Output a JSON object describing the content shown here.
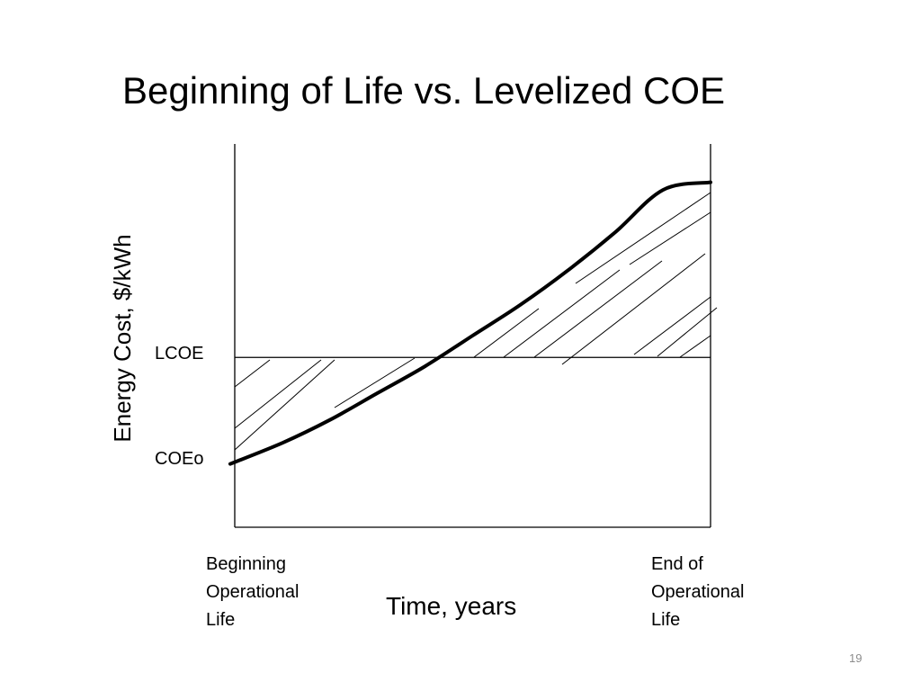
{
  "slide": {
    "title": "Beginning of Life vs. Levelized COE",
    "page_number": "19"
  },
  "chart_data": {
    "type": "line",
    "title": "Beginning of Life vs. Levelized COE",
    "xlabel": "Time, years",
    "ylabel": "Energy Cost, $/kWh",
    "x_range": [
      0,
      1
    ],
    "y_range": [
      0,
      1
    ],
    "x_tick_labels": [
      {
        "x": 0,
        "label": "Beginning\nOperational\nLife"
      },
      {
        "x": 1,
        "label": "End of\nOperational\nLife"
      }
    ],
    "y_level_labels": [
      {
        "y": 0.443,
        "label": "LCOE"
      },
      {
        "y": 0.177,
        "label": "COEo"
      }
    ],
    "series": [
      {
        "style": "bold curve",
        "x": [
          0,
          0.1,
          0.2,
          0.3,
          0.4,
          0.5,
          0.6,
          0.7,
          0.8,
          0.9,
          1.0
        ],
        "y": [
          0.17,
          0.22,
          0.28,
          0.35,
          0.42,
          0.5,
          0.58,
          0.67,
          0.77,
          0.88,
          0.9
        ]
      }
    ],
    "reference_lines": [
      {
        "orientation": "horizontal",
        "y": 0.443,
        "label": "LCOE"
      }
    ],
    "shaded_regions": [
      {
        "pattern": "diagonal hatching",
        "x_from": 0,
        "x_to": 0.44,
        "between": "curve and LCOE line, below LCOE"
      },
      {
        "pattern": "diagonal hatching",
        "x_from": 0.44,
        "x_to": 1.0,
        "between": "LCOE line and curve, above LCOE"
      }
    ],
    "grid": false,
    "legend": "none"
  }
}
